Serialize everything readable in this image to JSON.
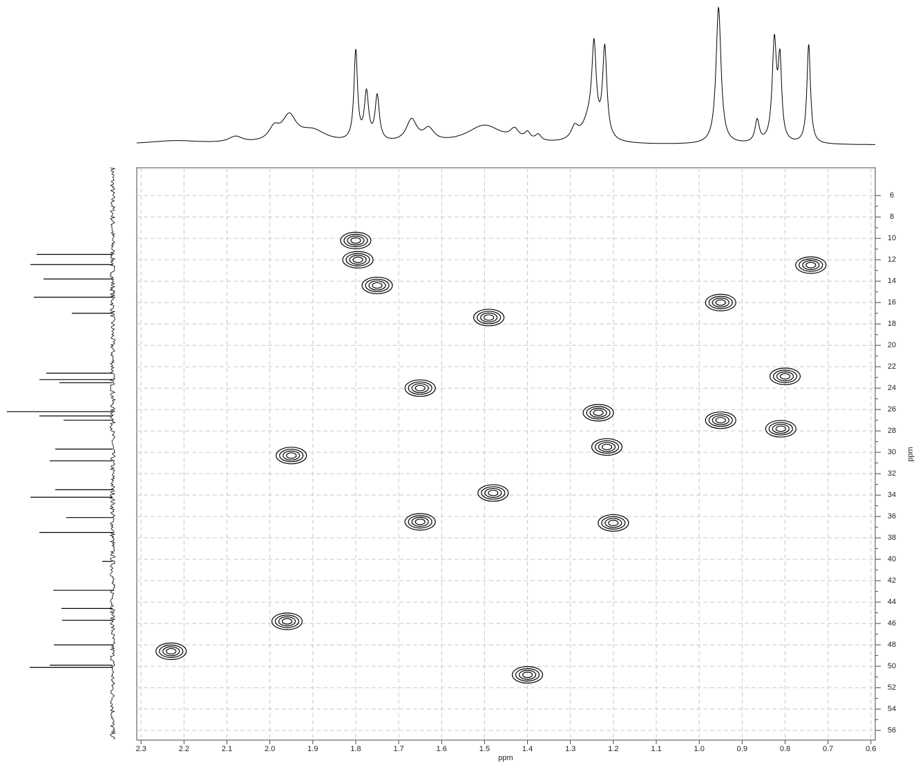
{
  "chart_data": {
    "type": "contour",
    "x_label": "ppm",
    "y_label": "ppm",
    "xlim": [
      2.31,
      0.59
    ],
    "ylim": [
      3.4,
      56.9
    ],
    "xticks": [
      2.3,
      2.2,
      2.1,
      {
        "value": 2,
        "label": "2.0"
      },
      1.9,
      1.8,
      1.7,
      1.6,
      1.5,
      1.4,
      1.3,
      1.2,
      1.1,
      {
        "value": 1,
        "label": "1.0"
      },
      0.9,
      0.8,
      0.7,
      0.6
    ],
    "yticks": [
      6,
      8,
      10,
      12,
      14,
      16,
      18,
      20,
      22,
      24,
      26,
      28,
      30,
      32,
      34,
      36,
      38,
      40,
      42,
      44,
      46,
      48,
      50,
      52,
      54,
      56
    ],
    "grid": true,
    "color": "#000000",
    "peaks": {
      "x": [
        1.795,
        1.8,
        1.75,
        1.49,
        1.65,
        1.95,
        1.48,
        1.65,
        1.96,
        2.23,
        1.4,
        1.235,
        1.215,
        1.2,
        0.95,
        0.95,
        0.74,
        0.8,
        0.81
      ],
      "y": [
        12.0,
        10.2,
        14.4,
        17.4,
        24.0,
        30.3,
        33.8,
        36.5,
        45.8,
        48.6,
        50.8,
        26.3,
        29.5,
        36.6,
        27.0,
        16.0,
        12.5,
        22.9,
        27.8
      ]
    },
    "projection_top": {
      "x": [
        2.22,
        2.08,
        1.99,
        1.955,
        1.9,
        1.8,
        1.775,
        1.75,
        1.67,
        1.63,
        1.5,
        1.43,
        1.4,
        1.375,
        1.29,
        1.255,
        1.245,
        1.22,
        0.955,
        0.865,
        0.825,
        0.812,
        0.745
      ],
      "values": [
        3,
        5,
        10,
        20,
        10,
        72,
        38,
        36,
        18,
        10,
        15,
        8,
        6,
        5,
        10,
        18,
        66,
        72,
        110,
        18,
        80,
        62,
        80
      ],
      "widths": [
        0.08,
        0.02,
        0.015,
        0.02,
        0.04,
        0.005,
        0.006,
        0.006,
        0.015,
        0.015,
        0.05,
        0.012,
        0.008,
        0.008,
        0.01,
        0.02,
        0.006,
        0.006,
        0.007,
        0.006,
        0.006,
        0.005,
        0.005
      ]
    },
    "projection_left": {
      "x": [
        11.5,
        12.45,
        13.8,
        15.5,
        17.0,
        22.6,
        23.2,
        23.5,
        26.2,
        26.6,
        27.0,
        29.7,
        30.8,
        33.5,
        34.2,
        36.1,
        37.5,
        40.2,
        42.9,
        44.6,
        45.7,
        48.0,
        49.9,
        50.1
      ],
      "values": [
        110,
        119,
        100,
        114,
        59,
        96,
        106,
        77,
        153,
        106,
        71,
        83,
        91,
        83,
        119,
        67,
        106,
        15,
        86,
        74,
        73,
        85,
        91,
        120
      ]
    }
  }
}
